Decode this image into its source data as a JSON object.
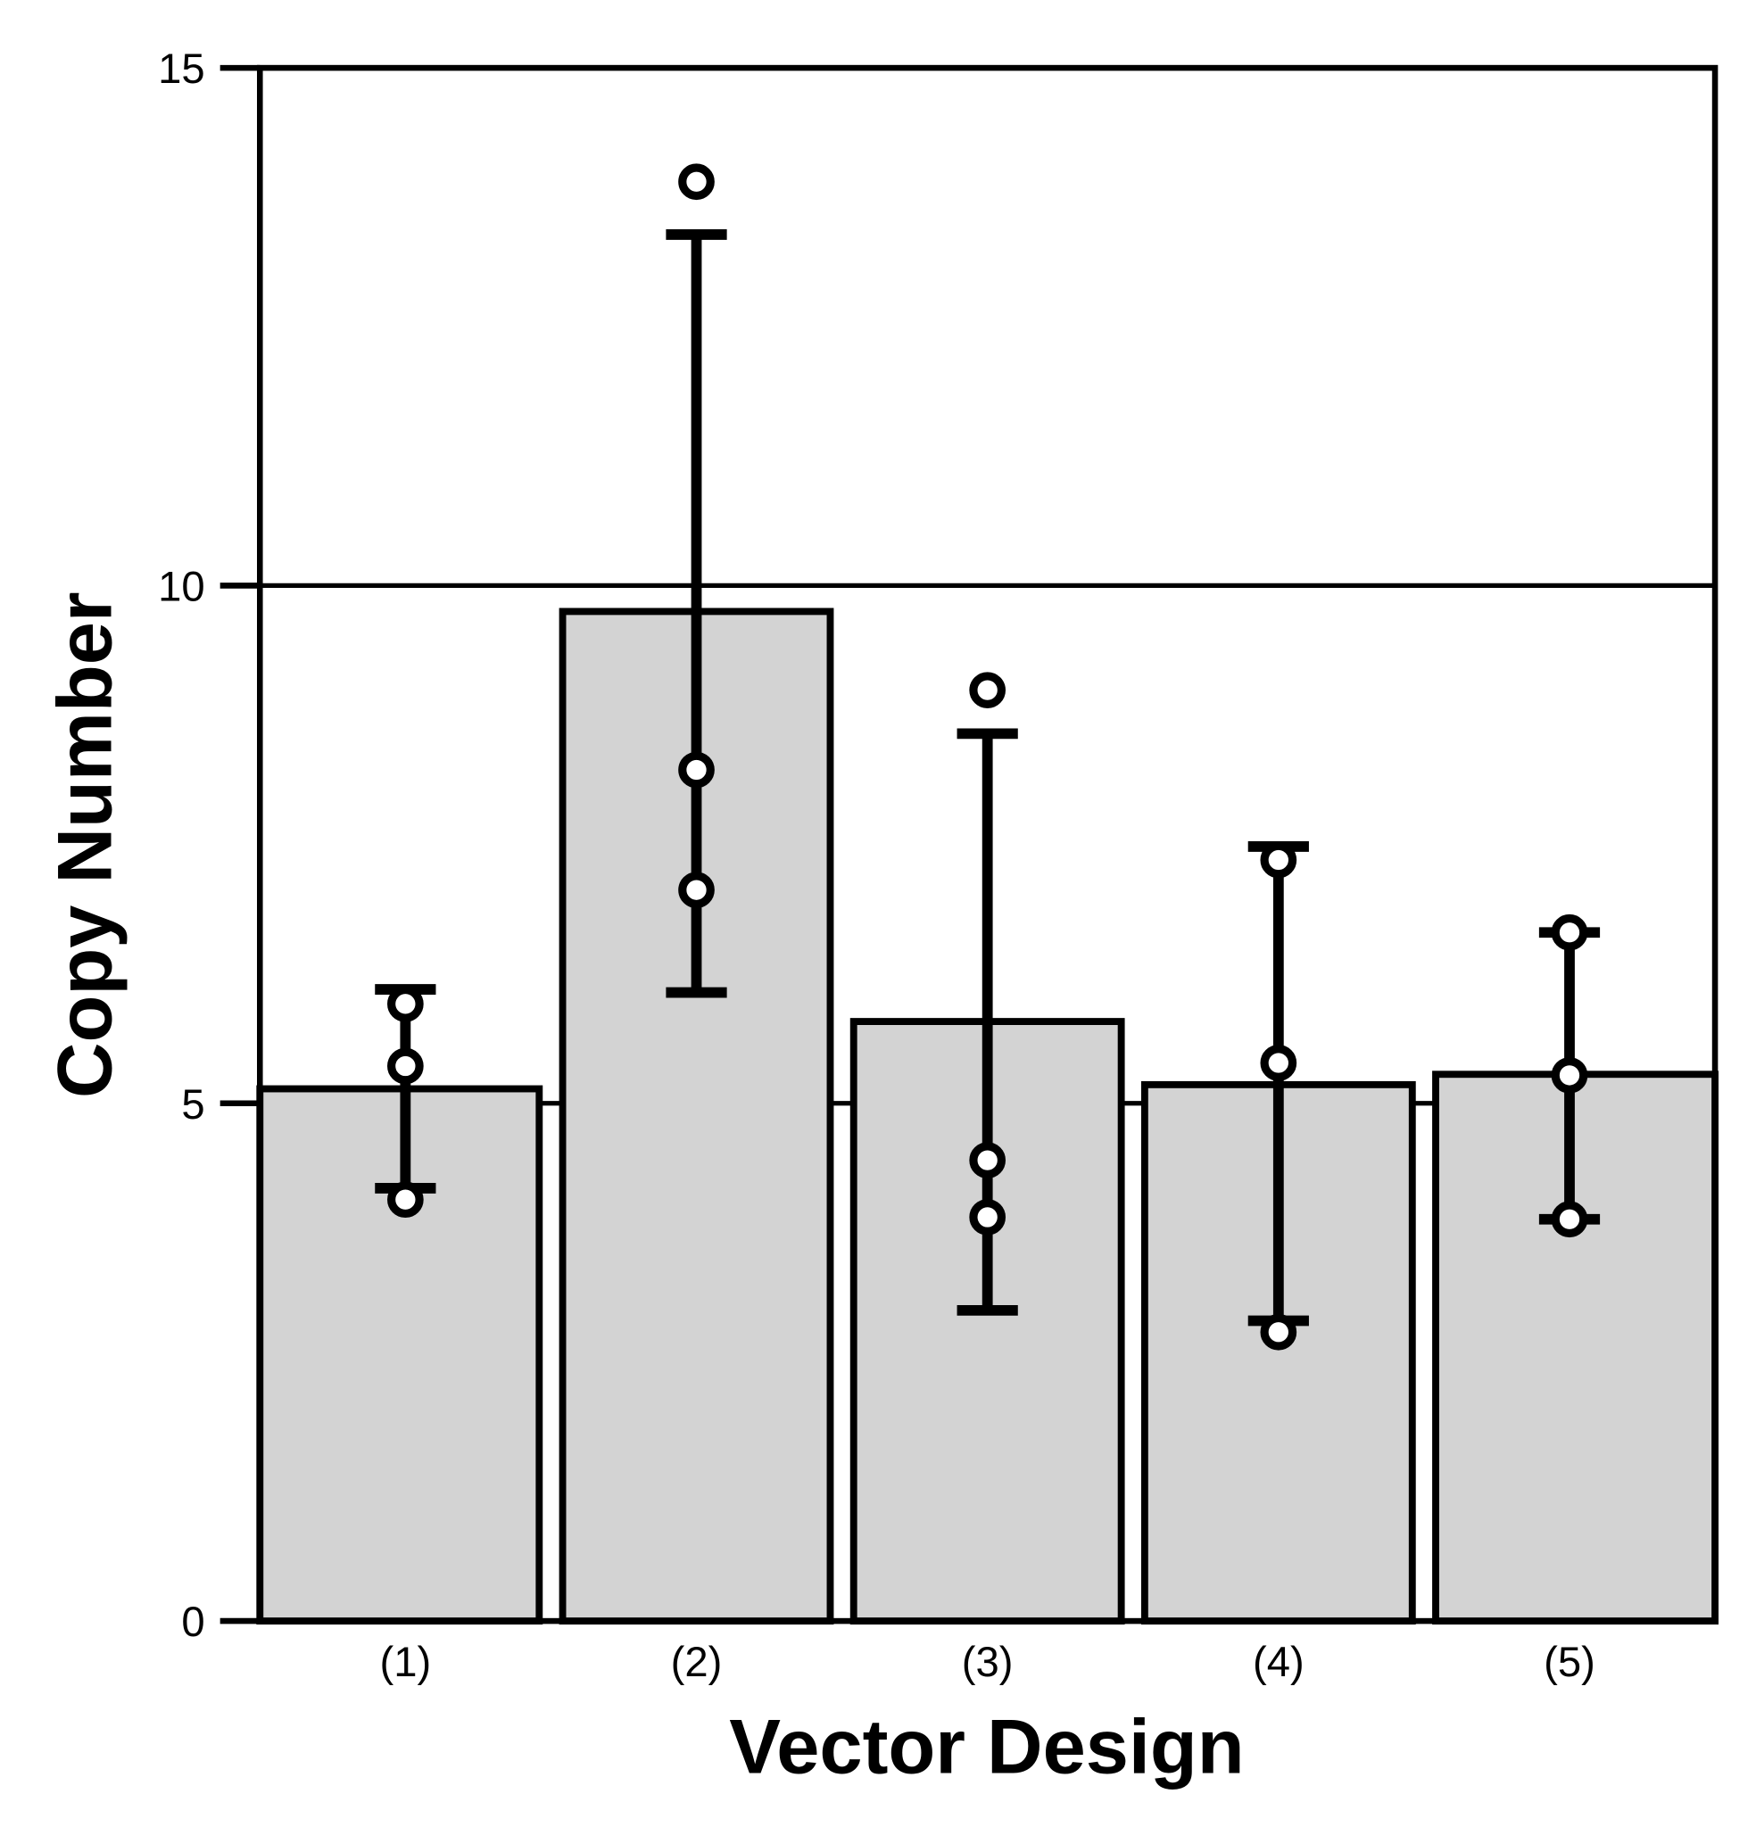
{
  "chart_data": {
    "type": "bar",
    "xlabel": "Vector Design",
    "ylabel": "Copy Number",
    "ylim": [
      0,
      15
    ],
    "yticks": [
      "0",
      "5",
      "10",
      "15"
    ],
    "grid": {
      "horizontal": true,
      "values": [
        5,
        10
      ]
    },
    "categories": [
      "(1)",
      "(2)",
      "(3)",
      "(4)",
      "(5)"
    ],
    "values": [
      5.14,
      9.75,
      5.79,
      5.18,
      5.28
    ],
    "error_bars": [
      {
        "upper": 6.1,
        "lower": 4.18
      },
      {
        "upper": 13.39,
        "lower": 6.07
      },
      {
        "upper": 8.57,
        "lower": 3.0
      },
      {
        "upper": 7.48,
        "lower": 2.9
      },
      {
        "upper": 6.65,
        "lower": 3.88
      }
    ],
    "points": [
      [
        5.96,
        5.36,
        4.07
      ],
      [
        13.9,
        8.22,
        7.06
      ],
      [
        8.99,
        4.45,
        3.9
      ],
      [
        7.35,
        5.39,
        2.79
      ],
      [
        6.65,
        5.27,
        3.88
      ]
    ],
    "colors": {
      "bar_fill": "#d3d3d3",
      "stroke": "#000000",
      "point_fill": "#ffffff"
    }
  }
}
